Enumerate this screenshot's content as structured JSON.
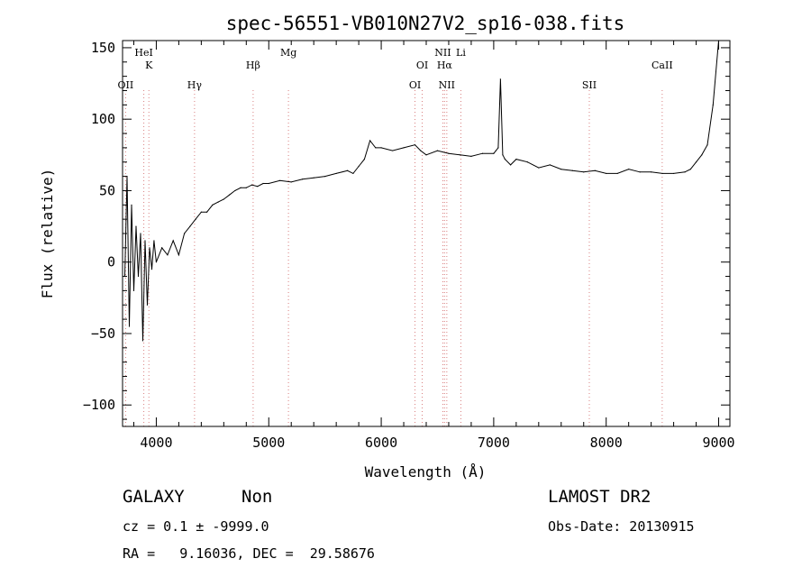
{
  "chart_data": {
    "type": "line",
    "title": "spec-56551-VB010N27V2_sp16-038.fits",
    "xlabel": "Wavelength (Å)",
    "ylabel": "Flux (relative)",
    "xlim": [
      3700,
      9100
    ],
    "ylim": [
      -115,
      155
    ],
    "x_ticks": [
      4000,
      5000,
      6000,
      7000,
      8000,
      9000
    ],
    "y_ticks": [
      -100,
      -50,
      0,
      50,
      100,
      150
    ],
    "grid": false,
    "line_color": "#000000",
    "marker_color": "#d98080",
    "lines": [
      {
        "name": "OII",
        "wavelength": 3727
      },
      {
        "name": "K",
        "wavelength": 3934
      },
      {
        "name": "HeI",
        "wavelength": 3889
      },
      {
        "name": "Hγ",
        "wavelength": 4340
      },
      {
        "name": "Hβ",
        "wavelength": 4861
      },
      {
        "name": "Mg",
        "wavelength": 5175
      },
      {
        "name": "OI",
        "wavelength": 6300
      },
      {
        "name": "OI",
        "wavelength": 6364
      },
      {
        "name": "NII",
        "wavelength": 6548
      },
      {
        "name": "NII",
        "wavelength": 6583
      },
      {
        "name": "Hα",
        "wavelength": 6563
      },
      {
        "name": "Li",
        "wavelength": 6708
      },
      {
        "name": "SII",
        "wavelength": 7850
      },
      {
        "name": "CaII",
        "wavelength": 8498
      }
    ],
    "series": [
      {
        "x": [
          3720,
          3740,
          3760,
          3780,
          3800,
          3820,
          3840,
          3860,
          3880,
          3900,
          3920,
          3940,
          3960,
          3980,
          4000,
          4050,
          4100,
          4150,
          4200,
          4250,
          4300,
          4350,
          4400,
          4450,
          4500,
          4550,
          4600,
          4650,
          4700,
          4750,
          4800,
          4850,
          4900,
          4950,
          5000,
          5100,
          5200,
          5300,
          5400,
          5500,
          5600,
          5700,
          5750,
          5800,
          5850,
          5900,
          5950,
          6000,
          6100,
          6200,
          6300,
          6350,
          6400,
          6500,
          6600,
          6700,
          6800,
          6900,
          7000,
          7020,
          7040,
          7060,
          7080,
          7100,
          7150,
          7200,
          7300,
          7400,
          7500,
          7600,
          7700,
          7800,
          7900,
          8000,
          8100,
          8200,
          8300,
          8400,
          8500,
          8600,
          8700,
          8750,
          8800,
          8850,
          8900,
          8950,
          9000
        ],
        "y": [
          -10,
          60,
          -45,
          40,
          -20,
          25,
          -10,
          20,
          -55,
          15,
          -30,
          10,
          -5,
          15,
          0,
          10,
          5,
          15,
          5,
          20,
          25,
          30,
          35,
          35,
          40,
          42,
          44,
          47,
          50,
          52,
          52,
          54,
          53,
          55,
          55,
          57,
          56,
          58,
          59,
          60,
          62,
          64,
          62,
          67,
          72,
          85,
          80,
          80,
          78,
          80,
          82,
          78,
          75,
          78,
          76,
          75,
          74,
          76,
          76,
          78,
          80,
          128,
          75,
          72,
          68,
          72,
          70,
          66,
          68,
          65,
          64,
          63,
          64,
          62,
          62,
          65,
          63,
          63,
          62,
          62,
          63,
          65,
          70,
          75,
          82,
          110,
          155
        ]
      }
    ]
  },
  "footer": {
    "object_class": "GALAXY",
    "subclass": "Non",
    "survey": "LAMOST DR2",
    "cz_line": "cz = 0.1 ± -9999.0",
    "obs_date": "Obs-Date: 20130915",
    "coords": "RA =   9.16036, DEC =  29.58676"
  }
}
